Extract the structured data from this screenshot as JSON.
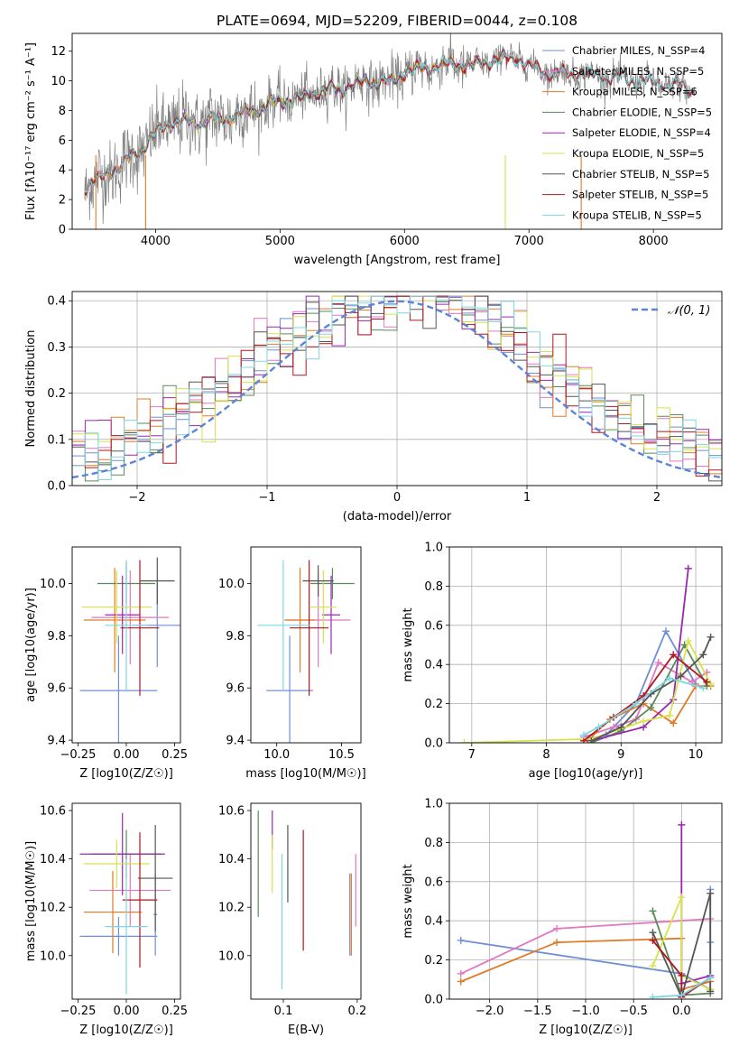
{
  "chart_data": [
    {
      "id": "spectrum",
      "type": "line",
      "title": "PLATE=0694, MJD=52209, FIBERID=0044, z=0.108",
      "xlabel": "wavelength [Angstrom, rest frame]",
      "ylabel": "Flux [fλ10⁻¹⁷ erg cm⁻² s⁻¹ A⁻¹]",
      "xlim": [
        3330,
        8550
      ],
      "ylim": [
        0,
        13.2
      ],
      "xticks": [
        4000,
        5000,
        6000,
        7000,
        8000
      ],
      "yticks": [
        0,
        2,
        4,
        6,
        8,
        10,
        12
      ],
      "legend_position": "right",
      "data_color": "#808080",
      "anchors": [
        [
          3430,
          2.8
        ],
        [
          3550,
          3.4
        ],
        [
          3700,
          4.2
        ],
        [
          3850,
          5.1
        ],
        [
          3950,
          6.0
        ],
        [
          4050,
          6.8
        ],
        [
          4150,
          7.3
        ],
        [
          4300,
          7.2
        ],
        [
          4500,
          7.4
        ],
        [
          4700,
          7.8
        ],
        [
          4862,
          8.2
        ],
        [
          5000,
          8.7
        ],
        [
          5175,
          8.8
        ],
        [
          5300,
          9.3
        ],
        [
          5500,
          9.5
        ],
        [
          5700,
          10.0
        ],
        [
          5893,
          9.9
        ],
        [
          6000,
          10.6
        ],
        [
          6200,
          10.9
        ],
        [
          6400,
          11.2
        ],
        [
          6563,
          11.0
        ],
        [
          6700,
          11.4
        ],
        [
          6900,
          11.6
        ],
        [
          7000,
          11.0
        ],
        [
          7200,
          10.5
        ],
        [
          7400,
          10.5
        ],
        [
          7600,
          10.3
        ],
        [
          7800,
          10.1
        ],
        [
          8000,
          9.9
        ],
        [
          8200,
          9.6
        ],
        [
          8330,
          9.4
        ]
      ],
      "series": [
        {
          "name": "Chabrier MILES, N_SSP=4",
          "color": "#6f8fd5",
          "range": [
            3420,
            7430
          ]
        },
        {
          "name": "Salpeter MILES, N_SSP=5",
          "color": "#e377c2",
          "range": [
            3420,
            7430
          ]
        },
        {
          "name": "Kroupa MILES, N_SSP=6",
          "color": "#e07b28",
          "range": [
            3420,
            7430
          ]
        },
        {
          "name": "Chabrier ELODIE, N_SSP=5",
          "color": "#5a8a5a",
          "range": [
            3420,
            6810
          ]
        },
        {
          "name": "Salpeter ELODIE, N_SSP=4",
          "color": "#9b27b0",
          "range": [
            3420,
            6810
          ]
        },
        {
          "name": "Kroupa ELODIE, N_SSP=5",
          "color": "#d8e24a",
          "range": [
            3420,
            6810
          ]
        },
        {
          "name": "Chabrier STELIB, N_SSP=5",
          "color": "#555555",
          "range": [
            3420,
            8330
          ]
        },
        {
          "name": "Salpeter STELIB, N_SSP=5",
          "color": "#b0171f",
          "range": [
            3420,
            8330
          ]
        },
        {
          "name": "Kroupa STELIB, N_SSP=5",
          "color": "#7fd6e0",
          "range": [
            3420,
            8330
          ]
        }
      ]
    },
    {
      "id": "residuals",
      "type": "line",
      "xlabel": "(data-model)/error",
      "ylabel": "Normed distribution",
      "xlim": [
        -2.5,
        2.5
      ],
      "ylim": [
        0,
        0.42
      ],
      "xticks": [
        -2,
        -1,
        0,
        1,
        2
      ],
      "yticks": [
        0.0,
        0.1,
        0.2,
        0.3,
        0.4
      ],
      "grid": true,
      "legend": "𝒩(0, 1)",
      "legend_position": "top-right",
      "gaussian_color": "#5b85d8",
      "bin_width": 0.1,
      "series_colors": [
        "#6f8fd5",
        "#e377c2",
        "#e07b28",
        "#5a8a5a",
        "#9b27b0",
        "#d8e24a",
        "#555555",
        "#b0171f",
        "#7fd6e0"
      ]
    },
    {
      "id": "age-Z",
      "type": "scatter",
      "xlabel": "Z [log10(Z/Z☉)]",
      "ylabel": "age  [log10(age/yr)]",
      "xlim": [
        -0.28,
        0.28
      ],
      "ylim": [
        9.39,
        10.14
      ],
      "xticks": [
        -0.25,
        0.0,
        0.25
      ],
      "yticks": [
        9.4,
        9.6,
        9.8,
        10.0
      ],
      "points": [
        {
          "x": -0.04,
          "y": 9.59,
          "xerr": 0.2,
          "yerr": 0.21,
          "color": "#6f8fd5"
        },
        {
          "x": 0.16,
          "y": 9.84,
          "xerr": 0.13,
          "yerr": 0.16,
          "color": "#6f8fd5"
        },
        {
          "x": 0.02,
          "y": 9.87,
          "xerr": 0.2,
          "yerr": 0.18,
          "color": "#e377c2"
        },
        {
          "x": -0.06,
          "y": 9.86,
          "xerr": 0.16,
          "yerr": 0.2,
          "color": "#e07b28"
        },
        {
          "x": 0.0,
          "y": 10.0,
          "xerr": 0.15,
          "yerr": 0.08,
          "color": "#5a8a5a"
        },
        {
          "x": -0.02,
          "y": 9.88,
          "xerr": 0.09,
          "yerr": 0.15,
          "color": "#9b27b0"
        },
        {
          "x": -0.05,
          "y": 9.91,
          "xerr": 0.18,
          "yerr": 0.14,
          "color": "#d8e24a"
        },
        {
          "x": 0.16,
          "y": 10.01,
          "xerr": 0.09,
          "yerr": 0.09,
          "color": "#555555"
        },
        {
          "x": 0.07,
          "y": 9.83,
          "xerr": 0.1,
          "yerr": 0.26,
          "color": "#b0171f"
        },
        {
          "x": 0.0,
          "y": 9.84,
          "xerr": 0.11,
          "yerr": 0.25,
          "color": "#7fd6e0"
        }
      ]
    },
    {
      "id": "age-mass",
      "type": "scatter",
      "xlabel": "mass [log10(M/M☉)]",
      "ylabel": "",
      "xlim": [
        9.8,
        10.65
      ],
      "ylim": [
        9.39,
        10.14
      ],
      "xticks": [
        10.0,
        10.5
      ],
      "yticks": [
        9.4,
        9.6,
        9.8,
        10.0
      ],
      "points": [
        {
          "x": 10.1,
          "y": 9.59,
          "xerr": 0.18,
          "yerr": 0.21,
          "color": "#6f8fd5"
        },
        {
          "x": 10.32,
          "y": 9.86,
          "xerr": 0.25,
          "yerr": 0.18,
          "color": "#e377c2"
        },
        {
          "x": 10.18,
          "y": 9.86,
          "xerr": 0.12,
          "yerr": 0.2,
          "color": "#e07b28"
        },
        {
          "x": 10.43,
          "y": 10.0,
          "xerr": 0.17,
          "yerr": 0.06,
          "color": "#5a8a5a"
        },
        {
          "x": 10.42,
          "y": 9.88,
          "xerr": 0.07,
          "yerr": 0.15,
          "color": "#9b27b0"
        },
        {
          "x": 10.36,
          "y": 9.91,
          "xerr": 0.1,
          "yerr": 0.14,
          "color": "#d8e24a"
        },
        {
          "x": 10.32,
          "y": 10.01,
          "xerr": 0.12,
          "yerr": 0.06,
          "color": "#555555"
        },
        {
          "x": 10.25,
          "y": 9.83,
          "xerr": 0.15,
          "yerr": 0.26,
          "color": "#b0171f"
        },
        {
          "x": 10.05,
          "y": 9.84,
          "xerr": 0.2,
          "yerr": 0.25,
          "color": "#7fd6e0"
        }
      ]
    },
    {
      "id": "weight-age",
      "type": "line",
      "xlabel": "age  [log10(age/yr)]",
      "ylabel": "mass weight",
      "xlim": [
        6.7,
        10.35
      ],
      "ylim": [
        0,
        1.0
      ],
      "xticks": [
        7,
        8,
        9,
        10
      ],
      "yticks": [
        0.0,
        0.2,
        0.4,
        0.6,
        0.8,
        1.0
      ],
      "grid": true,
      "series": [
        {
          "color": "#6f8fd5",
          "points": [
            [
              8.55,
              0.02
            ],
            [
              8.8,
              0.04
            ],
            [
              9.2,
              0.2
            ],
            [
              9.6,
              0.57
            ],
            [
              10.0,
              0.3
            ]
          ]
        },
        {
          "color": "#e377c2",
          "points": [
            [
              8.5,
              0.03
            ],
            [
              8.9,
              0.08
            ],
            [
              9.2,
              0.12
            ],
            [
              9.5,
              0.41
            ],
            [
              9.95,
              0.31
            ],
            [
              10.15,
              0.36
            ]
          ]
        },
        {
          "color": "#e07b28",
          "points": [
            [
              8.55,
              0.01
            ],
            [
              8.85,
              0.12
            ],
            [
              9.3,
              0.2
            ],
            [
              9.7,
              0.1
            ],
            [
              10.0,
              0.29
            ],
            [
              10.2,
              0.29
            ]
          ]
        },
        {
          "color": "#5a8a5a",
          "points": [
            [
              8.6,
              0.0
            ],
            [
              9.0,
              0.06
            ],
            [
              9.4,
              0.18
            ],
            [
              9.85,
              0.5
            ],
            [
              10.15,
              0.29
            ]
          ]
        },
        {
          "color": "#9b27b0",
          "points": [
            [
              8.6,
              0.01
            ],
            [
              9.3,
              0.08
            ],
            [
              9.7,
              0.22
            ],
            [
              9.9,
              0.89
            ]
          ]
        },
        {
          "color": "#d8e24a",
          "points": [
            [
              6.9,
              0.0
            ],
            [
              8.6,
              0.02
            ],
            [
              9.3,
              0.11
            ],
            [
              9.65,
              0.14
            ],
            [
              9.9,
              0.52
            ],
            [
              10.2,
              0.3
            ]
          ]
        },
        {
          "color": "#555555",
          "points": [
            [
              8.6,
              0.01
            ],
            [
              9.0,
              0.08
            ],
            [
              9.4,
              0.25
            ],
            [
              9.8,
              0.34
            ],
            [
              10.1,
              0.45
            ],
            [
              10.2,
              0.54
            ]
          ]
        },
        {
          "color": "#b0171f",
          "points": [
            [
              8.5,
              0.01
            ],
            [
              8.9,
              0.13
            ],
            [
              9.3,
              0.24
            ],
            [
              9.7,
              0.45
            ],
            [
              10.15,
              0.31
            ]
          ]
        },
        {
          "color": "#7fd6e0",
          "points": [
            [
              8.5,
              0.04
            ],
            [
              8.7,
              0.08
            ],
            [
              9.2,
              0.2
            ],
            [
              9.65,
              0.33
            ],
            [
              10.1,
              0.28
            ]
          ]
        }
      ]
    },
    {
      "id": "mass-Z",
      "type": "scatter",
      "xlabel": "Z [log10(Z/Z☉)]",
      "ylabel": "mass [log10(M/M☉)]",
      "xlim": [
        -0.28,
        0.28
      ],
      "ylim": [
        9.82,
        10.63
      ],
      "xticks": [
        -0.25,
        0.0,
        0.25
      ],
      "yticks": [
        10.0,
        10.2,
        10.4,
        10.6
      ],
      "points": [
        {
          "x": -0.04,
          "y": 10.08,
          "xerr": 0.2,
          "yerr": 0.08,
          "color": "#6f8fd5"
        },
        {
          "x": 0.15,
          "y": 10.17,
          "xerr": 0.01,
          "yerr": 0.17,
          "color": "#6f8fd5"
        },
        {
          "x": 0.02,
          "y": 10.27,
          "xerr": 0.21,
          "yerr": 0.15,
          "color": "#e377c2"
        },
        {
          "x": -0.07,
          "y": 10.18,
          "xerr": 0.15,
          "yerr": 0.17,
          "color": "#e07b28"
        },
        {
          "x": 0.0,
          "y": 10.42,
          "xerr": 0.18,
          "yerr": 0.1,
          "color": "#5a8a5a"
        },
        {
          "x": -0.02,
          "y": 10.42,
          "xerr": 0.22,
          "yerr": 0.17,
          "color": "#9b27b0"
        },
        {
          "x": -0.05,
          "y": 10.38,
          "xerr": 0.17,
          "yerr": 0.1,
          "color": "#d8e24a"
        },
        {
          "x": 0.15,
          "y": 10.32,
          "xerr": 0.09,
          "yerr": 0.22,
          "color": "#555555"
        },
        {
          "x": 0.07,
          "y": 10.23,
          "xerr": 0.09,
          "yerr": 0.28,
          "color": "#b0171f"
        },
        {
          "x": 0.0,
          "y": 10.12,
          "xerr": 0.11,
          "yerr": 0.28,
          "color": "#7fd6e0"
        }
      ]
    },
    {
      "id": "mass-ebv",
      "type": "scatter",
      "xlabel": "E(B-V)",
      "ylabel": "",
      "xlim": [
        0.056,
        0.205
      ],
      "ylim": [
        9.82,
        10.63
      ],
      "xticks": [
        0.1,
        0.2
      ],
      "yticks": [
        10.0,
        10.2,
        10.4,
        10.6
      ],
      "points": [
        {
          "x": 0.066,
          "y": 10.38,
          "yerr": 0.22,
          "color": "#5a8a5a"
        },
        {
          "x": 0.085,
          "y": 10.52,
          "yerr": 0.08,
          "color": "#9b27b0"
        },
        {
          "x": 0.085,
          "y": 10.38,
          "yerr": 0.12,
          "color": "#d8e24a"
        },
        {
          "x": 0.098,
          "y": 10.14,
          "yerr": 0.28,
          "color": "#7fd6e0"
        },
        {
          "x": 0.106,
          "y": 10.38,
          "yerr": 0.16,
          "color": "#555555"
        },
        {
          "x": 0.127,
          "y": 10.27,
          "yerr": 0.25,
          "color": "#b0171f"
        },
        {
          "x": 0.192,
          "y": 10.17,
          "yerr": 0.17,
          "color": "#e07b28"
        },
        {
          "x": 0.198,
          "y": 10.27,
          "yerr": 0.15,
          "color": "#e377c2"
        },
        {
          "x": 0.19,
          "y": 10.17,
          "yerr": 0.17,
          "color": "#6f8fd5"
        }
      ]
    },
    {
      "id": "weight-Z",
      "type": "line",
      "xlabel": "Z [log10(Z/Z☉)]",
      "ylabel": "mass weight",
      "xlim": [
        -2.42,
        0.42
      ],
      "ylim": [
        0,
        1.0
      ],
      "xticks": [
        -2.0,
        -1.5,
        -1.0,
        -0.5,
        0.0
      ],
      "yticks": [
        0.0,
        0.2,
        0.4,
        0.6,
        0.8,
        1.0
      ],
      "grid": true,
      "series": [
        {
          "color": "#6f8fd5",
          "points": [
            [
              -2.3,
              0.3
            ],
            [
              0.0,
              0.13
            ],
            [
              0.3,
              0.05
            ],
            [
              0.3,
              0.56
            ],
            [
              0.3,
              0.29
            ]
          ]
        },
        {
          "color": "#e377c2",
          "points": [
            [
              -2.3,
              0.13
            ],
            [
              -1.3,
              0.36
            ],
            [
              0.3,
              0.41
            ]
          ]
        },
        {
          "color": "#e07b28",
          "points": [
            [
              -2.3,
              0.09
            ],
            [
              -1.3,
              0.29
            ],
            [
              0.0,
              0.31
            ],
            [
              0.0,
              0.05
            ],
            [
              0.3,
              0.09
            ]
          ]
        },
        {
          "color": "#5a8a5a",
          "points": [
            [
              -0.3,
              0.45
            ],
            [
              0.0,
              0.02
            ],
            [
              0.3,
              0.03
            ]
          ]
        },
        {
          "color": "#9b27b0",
          "points": [
            [
              0.0,
              0.89
            ],
            [
              0.0,
              0.08
            ],
            [
              0.3,
              0.12
            ]
          ]
        },
        {
          "color": "#d8e24a",
          "points": [
            [
              -0.3,
              0.17
            ],
            [
              0.0,
              0.52
            ],
            [
              0.0,
              0.12
            ],
            [
              0.3,
              0.05
            ]
          ]
        },
        {
          "color": "#555555",
          "points": [
            [
              -0.3,
              0.34
            ],
            [
              0.0,
              0.01
            ],
            [
              0.3,
              0.54
            ],
            [
              0.3,
              0.04
            ]
          ]
        },
        {
          "color": "#b0171f",
          "points": [
            [
              -0.3,
              0.3
            ],
            [
              0.0,
              0.12
            ],
            [
              0.0,
              0.01
            ],
            [
              0.3,
              0.11
            ]
          ]
        },
        {
          "color": "#7fd6e0",
          "points": [
            [
              -0.3,
              0.01
            ],
            [
              0.0,
              0.02
            ],
            [
              0.3,
              0.11
            ]
          ]
        }
      ]
    }
  ]
}
